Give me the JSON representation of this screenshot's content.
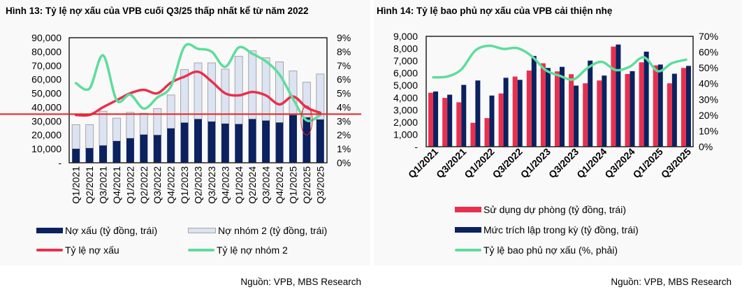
{
  "left": {
    "title": "Hình 13: Tỷ lệ nợ xấu của VPB cuối Q3/25 thấp nhất kể từ năm 2022",
    "source": "Nguồn: VPB, MBS Research",
    "legend": [
      "Nợ xấu (tỷ đồng, trái)",
      "Nợ nhóm 2 (tỷ đồng, trái)",
      "Tỷ lệ nợ xấu",
      "Tỷ lệ nợ nhóm 2"
    ]
  },
  "right": {
    "title": "Hình 14: Tỷ lệ bao phủ nợ xấu của VPB cải thiện nhẹ",
    "source": "Nguồn: VPB, MBS Research",
    "legend": [
      "Sử dụng dự phòng (tỷ đồng, trái)",
      "Mức trích lập trong kỳ (tỷ đồng, trái)",
      "Tỷ lệ bao phủ nợ xấu (%, phải)"
    ]
  },
  "colors": {
    "navy": "#0b2160",
    "lightbar": "#dce3f2",
    "lightbar_border": "#a6a6a6",
    "red": "#e8304e",
    "green": "#5fdc9c",
    "annotation": "#e8201f"
  },
  "chart_data": [
    {
      "type": "bar+line",
      "title": "Hình 13: Tỷ lệ nợ xấu của VPB cuối Q3/25 thấp nhất kể từ năm 2022",
      "categories": [
        "Q1/2021",
        "Q2/2021",
        "Q3/2021",
        "Q4/2021",
        "Q1/2022",
        "Q2/2022",
        "Q3/2022",
        "Q4/2022",
        "Q1/2023",
        "Q2/2023",
        "Q3/2023",
        "Q4/2023",
        "Q1/2024",
        "Q2/2024",
        "Q3/2024",
        "Q4/2024",
        "Q1/2025",
        "Q2/2025",
        "Q3/2025"
      ],
      "y_ticks": [
        "-",
        "10,000",
        "20,000",
        "30,000",
        "40,000",
        "50,000",
        "60,000",
        "70,000",
        "80,000",
        "90,000"
      ],
      "y2_ticks": [
        "0%",
        "1%",
        "2%",
        "3%",
        "4%",
        "5%",
        "6%",
        "7%",
        "8%",
        "9%"
      ],
      "ylim": [
        0,
        90000
      ],
      "y2lim": [
        0,
        9
      ],
      "series": [
        {
          "name": "Nợ xấu (tỷ đồng, trái)",
          "kind": "stacked-bar",
          "axis": "left",
          "values": [
            10000,
            10500,
            12400,
            15600,
            17600,
            20200,
            19900,
            24700,
            28800,
            31400,
            29600,
            28100,
            27800,
            31400,
            30300,
            28900,
            34300,
            32600,
            31100
          ]
        },
        {
          "name": "Nợ nhóm 2 (tỷ đồng, trái)",
          "kind": "stacked-bar",
          "axis": "left",
          "values": [
            17400,
            16900,
            24700,
            16500,
            18700,
            15400,
            19100,
            24100,
            38300,
            40500,
            42300,
            39300,
            48800,
            49200,
            45300,
            43700,
            31800,
            25400,
            32800
          ]
        },
        {
          "name": "Tỷ lệ nợ xấu",
          "kind": "line",
          "axis": "right",
          "values": [
            3.44,
            3.44,
            4.0,
            4.5,
            5.0,
            5.25,
            5.0,
            5.77,
            6.2,
            6.55,
            5.85,
            5.0,
            4.85,
            5.1,
            4.85,
            4.2,
            4.77,
            3.98,
            3.6
          ]
        },
        {
          "name": "Tỷ lệ nợ nhóm 2",
          "kind": "line",
          "axis": "right",
          "values": [
            5.73,
            5.35,
            7.73,
            4.5,
            4.9,
            3.9,
            4.7,
            5.5,
            8.36,
            8.2,
            8.0,
            6.9,
            8.3,
            7.85,
            7.3,
            6.35,
            4.6,
            3.05,
            3.43
          ]
        }
      ],
      "annotations": {
        "hline_right_axis": 3.5,
        "circle_category": "Q2/2025",
        "circle_range_right_axis": [
          2.0,
          4.1
        ]
      }
    },
    {
      "type": "bar+line",
      "title": "Hình 14: Tỷ lệ bao phủ nợ xấu của VPB cải thiện nhẹ",
      "categories": [
        "Q1/2021",
        "Q2/2021",
        "Q3/2021",
        "Q4/2021",
        "Q1/2022",
        "Q2/2022",
        "Q3/2022",
        "Q4/2022",
        "Q1/2023",
        "Q2/2023",
        "Q3/2023",
        "Q4/2023",
        "Q1/2024",
        "Q2/2024",
        "Q3/2024",
        "Q4/2024",
        "Q1/2025",
        "Q2/2025",
        "Q3/2025"
      ],
      "x_tick_labels": [
        "Q1/2021",
        "Q3/2021",
        "Q1/2022",
        "Q3/2022",
        "Q1/2023",
        "Q3/2023",
        "Q1/2024",
        "Q3/2024",
        "Q1/2025",
        "Q3/2025"
      ],
      "y_ticks": [
        "-",
        "1,000",
        "2,000",
        "3,000",
        "4,000",
        "5,000",
        "6,000",
        "7,000",
        "8,000",
        "9,000"
      ],
      "y2_ticks": [
        "0%",
        "10%",
        "20%",
        "30%",
        "40%",
        "50%",
        "60%",
        "70%"
      ],
      "ylim": [
        0,
        9000
      ],
      "y2lim": [
        0,
        70
      ],
      "series": [
        {
          "name": "Sử dụng dự phòng (tỷ đồng, trái)",
          "kind": "bar",
          "axis": "left",
          "values": [
            4400,
            3980,
            3620,
            1950,
            2330,
            4340,
            5720,
            6210,
            6800,
            6140,
            5910,
            5170,
            5400,
            8160,
            5930,
            6880,
            6630,
            5170,
            6420
          ]
        },
        {
          "name": "Mức trích lập trong kỳ (tỷ đồng, trái)",
          "kind": "bar",
          "axis": "left",
          "values": [
            4500,
            4240,
            5040,
            5400,
            4170,
            5620,
            5450,
            7400,
            6420,
            6510,
            4980,
            7020,
            5800,
            8330,
            6160,
            7750,
            6700,
            5950,
            6590
          ]
        },
        {
          "name": "Tỷ lệ bao phủ nợ xấu (%, phải)",
          "kind": "line",
          "axis": "right",
          "values": [
            44,
            44.5,
            49,
            61,
            64,
            62,
            62.5,
            57.5,
            48.6,
            45,
            42.7,
            50,
            53.8,
            48.6,
            50.8,
            56.7,
            47.9,
            53,
            55.2
          ]
        }
      ]
    }
  ]
}
